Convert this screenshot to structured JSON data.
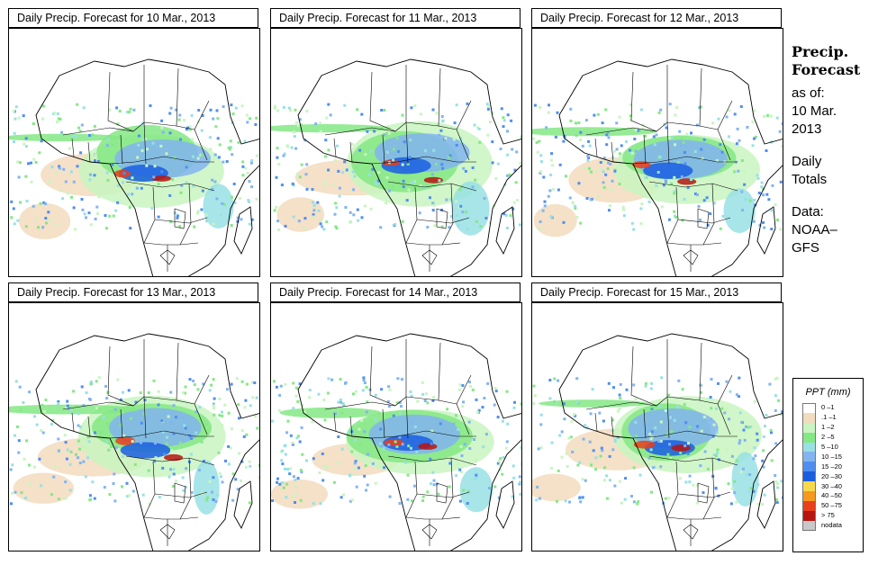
{
  "panels": [
    {
      "title": "Daily Precip. Forecast  for  10 Mar., 2013"
    },
    {
      "title": "Daily Precip. Forecast  for  11 Mar., 2013"
    },
    {
      "title": "Daily Precip. Forecast  for  12 Mar., 2013"
    },
    {
      "title": "Daily Precip. Forecast  for  13 Mar., 2013"
    },
    {
      "title": "Daily Precip. Forecast  for  14 Mar., 2013"
    },
    {
      "title": "Daily Precip. Forecast  for  15 Mar., 2013"
    }
  ],
  "side": {
    "heading_line1": "Precip.",
    "heading_line2": "Forecast",
    "asof_label": "as of:",
    "asof_date_line1": "10 Mar.",
    "asof_date_line2": "2013",
    "totals_line1": "Daily",
    "totals_line2": "Totals",
    "data_label": "Data:",
    "source_line1": "NOAA–",
    "source_line2": "GFS"
  },
  "legend": {
    "title": "PPT (mm)",
    "entries": [
      {
        "label": "0 –1",
        "color": "#ffffff"
      },
      {
        "label": ".1 –1",
        "color": "#f2dcbe"
      },
      {
        "label": "1 –2",
        "color": "#c8f5c0"
      },
      {
        "label": "2 –5",
        "color": "#84e884"
      },
      {
        "label": "5 –10",
        "color": "#98e0e4"
      },
      {
        "label": "10 –15",
        "color": "#82b4f0"
      },
      {
        "label": "15 –20",
        "color": "#4f8ef0"
      },
      {
        "label": "20 –30",
        "color": "#1a5ee0"
      },
      {
        "label": "30 –40",
        "color": "#f6d84a"
      },
      {
        "label": "40 –50",
        "color": "#f49a1e"
      },
      {
        "label": "50 –75",
        "color": "#e8401a"
      },
      {
        "label": "> 75",
        "color": "#b81410"
      },
      {
        "label": "nodata",
        "color": "#c8c8c8"
      }
    ]
  }
}
